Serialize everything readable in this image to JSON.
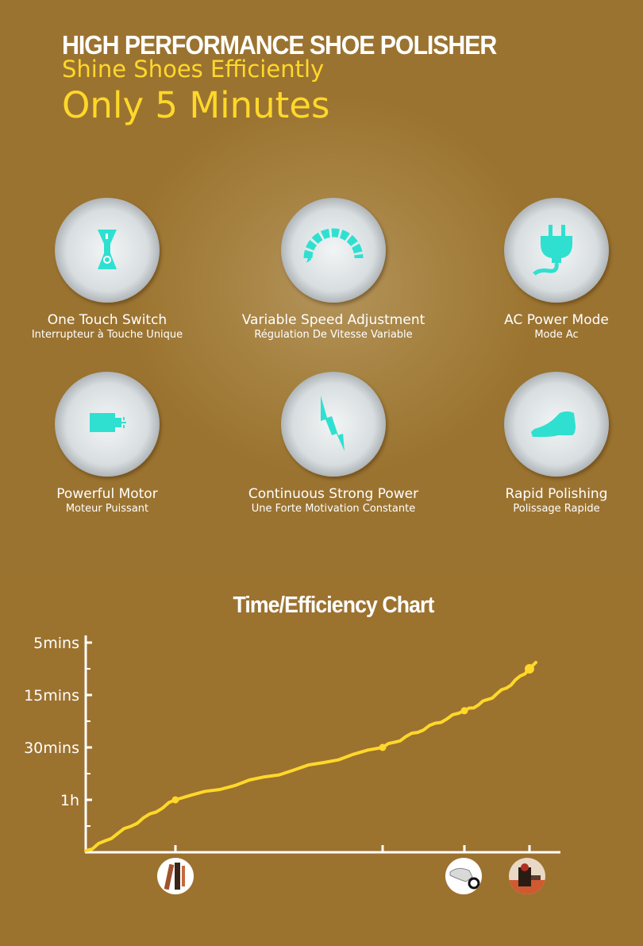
{
  "header": {
    "title": "HIGH PERFORMANCE SHOE POLISHER",
    "subtitle": "Shine Shoes Efficiently",
    "highlight": "Only 5 Minutes"
  },
  "features": [
    {
      "label": "One Touch Switch",
      "sublabel": "Interrupteur à Touche Unique",
      "icon": "switch-icon"
    },
    {
      "label": "Variable Speed Adjustment",
      "sublabel": "Régulation De Vitesse Variable",
      "icon": "speed-dial-icon"
    },
    {
      "label": "AC Power Mode",
      "sublabel": "Mode Ac",
      "icon": "power-plug-icon"
    },
    {
      "label": "Powerful Motor",
      "sublabel": "Moteur Puissant",
      "icon": "motor-icon"
    },
    {
      "label": "Continuous Strong Power",
      "sublabel": "Une Forte Motivation Constante",
      "icon": "lightning-icon"
    },
    {
      "label": "Rapid Polishing",
      "sublabel": "Polissage Rapide",
      "icon": "shoe-icon"
    }
  ],
  "colors": {
    "background": "#9b7330",
    "accent_yellow": "#ffd82a",
    "icon_teal": "#2fe0d0",
    "text": "#ffffff"
  },
  "chart_data": {
    "type": "line",
    "title": "Time/Efficiency Chart",
    "y_tick_labels": [
      "5mins",
      "15mins",
      "30mins",
      "1h"
    ],
    "x_markers": [
      {
        "icon": "brush-icon"
      },
      {
        "icon": "none"
      },
      {
        "icon": "electric-polisher-icon"
      },
      {
        "icon": "shoe-polisher-machine-icon"
      }
    ],
    "series": [
      {
        "points": [
          {
            "x": 0,
            "y": 0.0
          },
          {
            "x": 1,
            "y": 1.0
          },
          {
            "x": 2,
            "y": 2.0
          },
          {
            "x": 3,
            "y": 2.7
          },
          {
            "x": 4,
            "y": 3.5
          }
        ]
      }
    ],
    "grid": false,
    "line_color": "#ffd82a"
  }
}
